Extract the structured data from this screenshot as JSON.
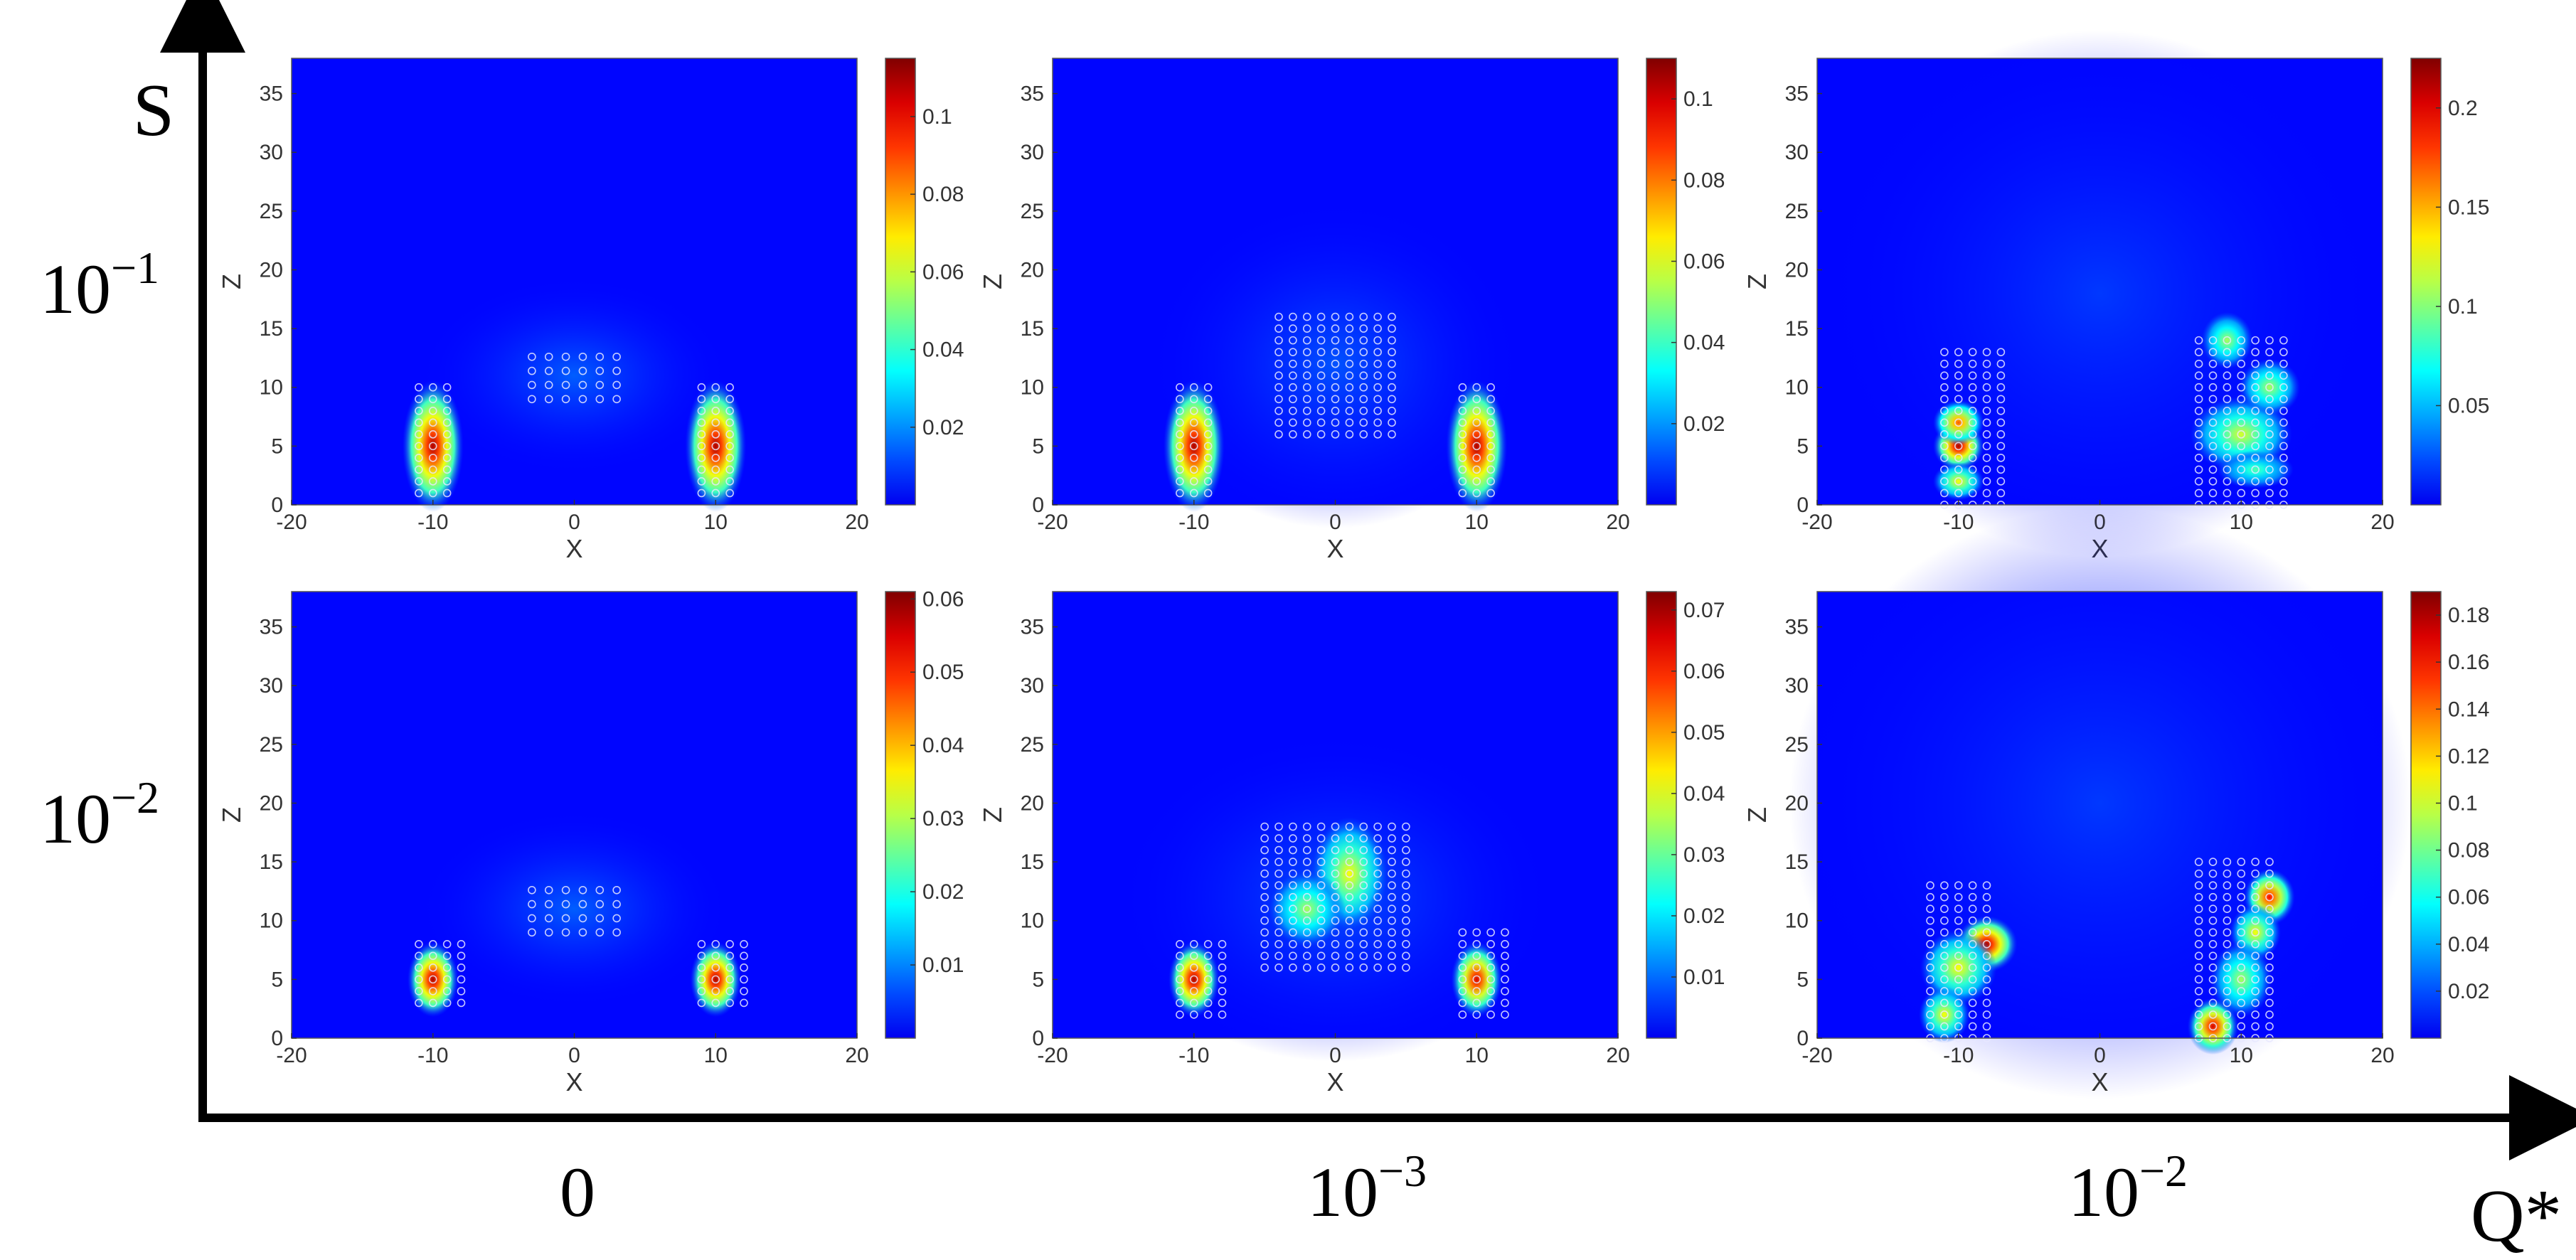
{
  "figure": {
    "y_axis_label": "S",
    "x_axis_label": "Q*",
    "row_labels": [
      {
        "base": "10",
        "exp": "−1"
      },
      {
        "base": "10",
        "exp": "−2"
      }
    ],
    "col_labels": [
      {
        "base": "0",
        "exp": ""
      },
      {
        "base": "10",
        "exp": "−3"
      },
      {
        "base": "10",
        "exp": "−2"
      }
    ]
  },
  "chart_data": [
    {
      "type": "heatmap",
      "row": 0,
      "col": 0,
      "xlabel": "X",
      "ylabel": "Z",
      "xlim": [
        -20,
        20
      ],
      "ylim": [
        0,
        38
      ],
      "xticks": [
        -20,
        -10,
        0,
        10,
        20
      ],
      "yticks": [
        0,
        5,
        10,
        15,
        20,
        25,
        30,
        35
      ],
      "colorbar": {
        "max": 0.115,
        "ticks": [
          0.02,
          0.04,
          0.06,
          0.08,
          0.1
        ],
        "tick_labels": [
          "0.02",
          "0.04",
          "0.06",
          "0.08",
          "0.1"
        ]
      },
      "glow": [
        [
          0,
          11,
          5,
          3,
          0.35
        ]
      ],
      "hotspots": [
        [
          -10,
          5,
          1.2,
          3.5,
          1.0
        ],
        [
          10,
          5,
          1.2,
          3.5,
          1.0
        ]
      ],
      "particle_groups": [
        [
          -11,
          1,
          2,
          9,
          1,
          1
        ],
        [
          9,
          1,
          2,
          9,
          1,
          1
        ],
        [
          -3,
          9,
          6,
          4,
          1.2,
          1.2
        ]
      ]
    },
    {
      "type": "heatmap",
      "row": 0,
      "col": 1,
      "xlabel": "X",
      "ylabel": "Z",
      "xlim": [
        -20,
        20
      ],
      "ylim": [
        0,
        38
      ],
      "xticks": [
        -20,
        -10,
        0,
        10,
        20
      ],
      "yticks": [
        0,
        5,
        10,
        15,
        20,
        25,
        30,
        35
      ],
      "colorbar": {
        "max": 0.11,
        "ticks": [
          0.02,
          0.04,
          0.06,
          0.08,
          0.1
        ],
        "tick_labels": [
          "0.02",
          "0.04",
          "0.06",
          "0.08",
          "0.1"
        ]
      },
      "glow": [
        [
          0,
          12,
          6,
          5,
          0.3
        ]
      ],
      "hotspots": [
        [
          -10,
          5,
          1.2,
          3.5,
          1.0
        ],
        [
          10,
          5,
          1.2,
          3.5,
          1.0
        ]
      ],
      "particle_groups": [
        [
          -11,
          1,
          2,
          9,
          1,
          1
        ],
        [
          9,
          1,
          2,
          9,
          1,
          1
        ],
        [
          -4,
          6,
          8,
          10,
          1,
          1
        ]
      ]
    },
    {
      "type": "heatmap",
      "row": 0,
      "col": 2,
      "xlabel": "X",
      "ylabel": "Z",
      "xlim": [
        -20,
        20
      ],
      "ylim": [
        0,
        38
      ],
      "xticks": [
        -20,
        -10,
        0,
        10,
        20
      ],
      "yticks": [
        0,
        5,
        10,
        15,
        20,
        25,
        30,
        35
      ],
      "colorbar": {
        "max": 0.225,
        "ticks": [
          0.05,
          0.1,
          0.15,
          0.2
        ],
        "tick_labels": [
          "0.05",
          "0.1",
          "0.15",
          "0.2"
        ]
      },
      "glow": [
        [
          0,
          18,
          9,
          8,
          0.2
        ]
      ],
      "hotspots": [
        [
          -10,
          5,
          1,
          1.3,
          1.0
        ],
        [
          -10,
          7,
          1,
          1.2,
          0.8
        ],
        [
          -10,
          2,
          1,
          1,
          0.6
        ],
        [
          10,
          6,
          2,
          2,
          0.55
        ],
        [
          9,
          14,
          1,
          1.5,
          0.5
        ],
        [
          12,
          10,
          1.2,
          1.5,
          0.5
        ],
        [
          11,
          3,
          1.5,
          1,
          0.4
        ]
      ],
      "particle_groups": [
        [
          -11,
          0,
          4,
          13,
          1,
          1
        ],
        [
          7,
          0,
          6,
          14,
          1,
          1
        ]
      ]
    },
    {
      "type": "heatmap",
      "row": 1,
      "col": 0,
      "xlabel": "X",
      "ylabel": "Z",
      "xlim": [
        -20,
        20
      ],
      "ylim": [
        0,
        38
      ],
      "xticks": [
        -20,
        -10,
        0,
        10,
        20
      ],
      "yticks": [
        0,
        5,
        10,
        15,
        20,
        25,
        30,
        35
      ],
      "colorbar": {
        "max": 0.061,
        "ticks": [
          0.01,
          0.02,
          0.03,
          0.04,
          0.05,
          0.06
        ],
        "tick_labels": [
          "0.01",
          "0.02",
          "0.03",
          "0.04",
          "0.05",
          "0.06"
        ]
      },
      "glow": [
        [
          0,
          11,
          5,
          3,
          0.35
        ]
      ],
      "hotspots": [
        [
          -10,
          5,
          1,
          2,
          1.0
        ],
        [
          10,
          5,
          1,
          2,
          1.0
        ]
      ],
      "particle_groups": [
        [
          -11,
          3,
          3,
          5,
          1,
          1
        ],
        [
          9,
          3,
          3,
          5,
          1,
          1
        ],
        [
          -3,
          9,
          6,
          4,
          1.2,
          1.2
        ]
      ]
    },
    {
      "type": "heatmap",
      "row": 1,
      "col": 1,
      "xlabel": "X",
      "ylabel": "Z",
      "xlim": [
        -20,
        20
      ],
      "ylim": [
        0,
        38
      ],
      "xticks": [
        -20,
        -10,
        0,
        10,
        20
      ],
      "yticks": [
        0,
        5,
        10,
        15,
        20,
        25,
        30,
        35
      ],
      "colorbar": {
        "max": 0.073,
        "ticks": [
          0.01,
          0.02,
          0.03,
          0.04,
          0.05,
          0.06,
          0.07
        ],
        "tick_labels": [
          "0.01",
          "0.02",
          "0.03",
          "0.04",
          "0.05",
          "0.06",
          "0.07"
        ]
      },
      "glow": [
        [
          0,
          12,
          7,
          5,
          0.3
        ]
      ],
      "hotspots": [
        [
          -10,
          5,
          1,
          2,
          1.0
        ],
        [
          10,
          5,
          1,
          2,
          0.95
        ],
        [
          1,
          14,
          1.5,
          3,
          0.6
        ],
        [
          -2,
          11,
          1.5,
          2,
          0.5
        ]
      ],
      "particle_groups": [
        [
          -11,
          2,
          3,
          6,
          1,
          1
        ],
        [
          9,
          2,
          3,
          7,
          1,
          1
        ],
        [
          -5,
          6,
          10,
          12,
          1,
          1
        ]
      ]
    },
    {
      "type": "heatmap",
      "row": 1,
      "col": 2,
      "xlabel": "X",
      "ylabel": "Z",
      "xlim": [
        -20,
        20
      ],
      "ylim": [
        0,
        38
      ],
      "xticks": [
        -20,
        -10,
        0,
        10,
        20
      ],
      "yticks": [
        0,
        5,
        10,
        15,
        20,
        25,
        30,
        35
      ],
      "colorbar": {
        "max": 0.19,
        "ticks": [
          0.02,
          0.04,
          0.06,
          0.08,
          0.1,
          0.12,
          0.14,
          0.16,
          0.18
        ],
        "tick_labels": [
          "0.02",
          "0.04",
          "0.06",
          "0.08",
          "0.1",
          "0.12",
          "0.14",
          "0.16",
          "0.18"
        ]
      },
      "glow": [
        [
          0,
          20,
          10,
          9,
          0.2
        ]
      ],
      "hotspots": [
        [
          -8,
          8,
          1.2,
          1.5,
          1.0
        ],
        [
          -10,
          6,
          1.5,
          2,
          0.6
        ],
        [
          -11,
          2,
          1,
          1.5,
          0.6
        ],
        [
          8,
          1,
          1,
          1.5,
          0.95
        ],
        [
          12,
          12,
          1,
          1.5,
          0.9
        ],
        [
          11,
          9,
          1,
          1.5,
          0.6
        ],
        [
          10,
          5,
          1.2,
          2,
          0.5
        ]
      ],
      "particle_groups": [
        [
          -12,
          0,
          4,
          13,
          1,
          1
        ],
        [
          7,
          0,
          5,
          15,
          1,
          1
        ]
      ]
    }
  ]
}
